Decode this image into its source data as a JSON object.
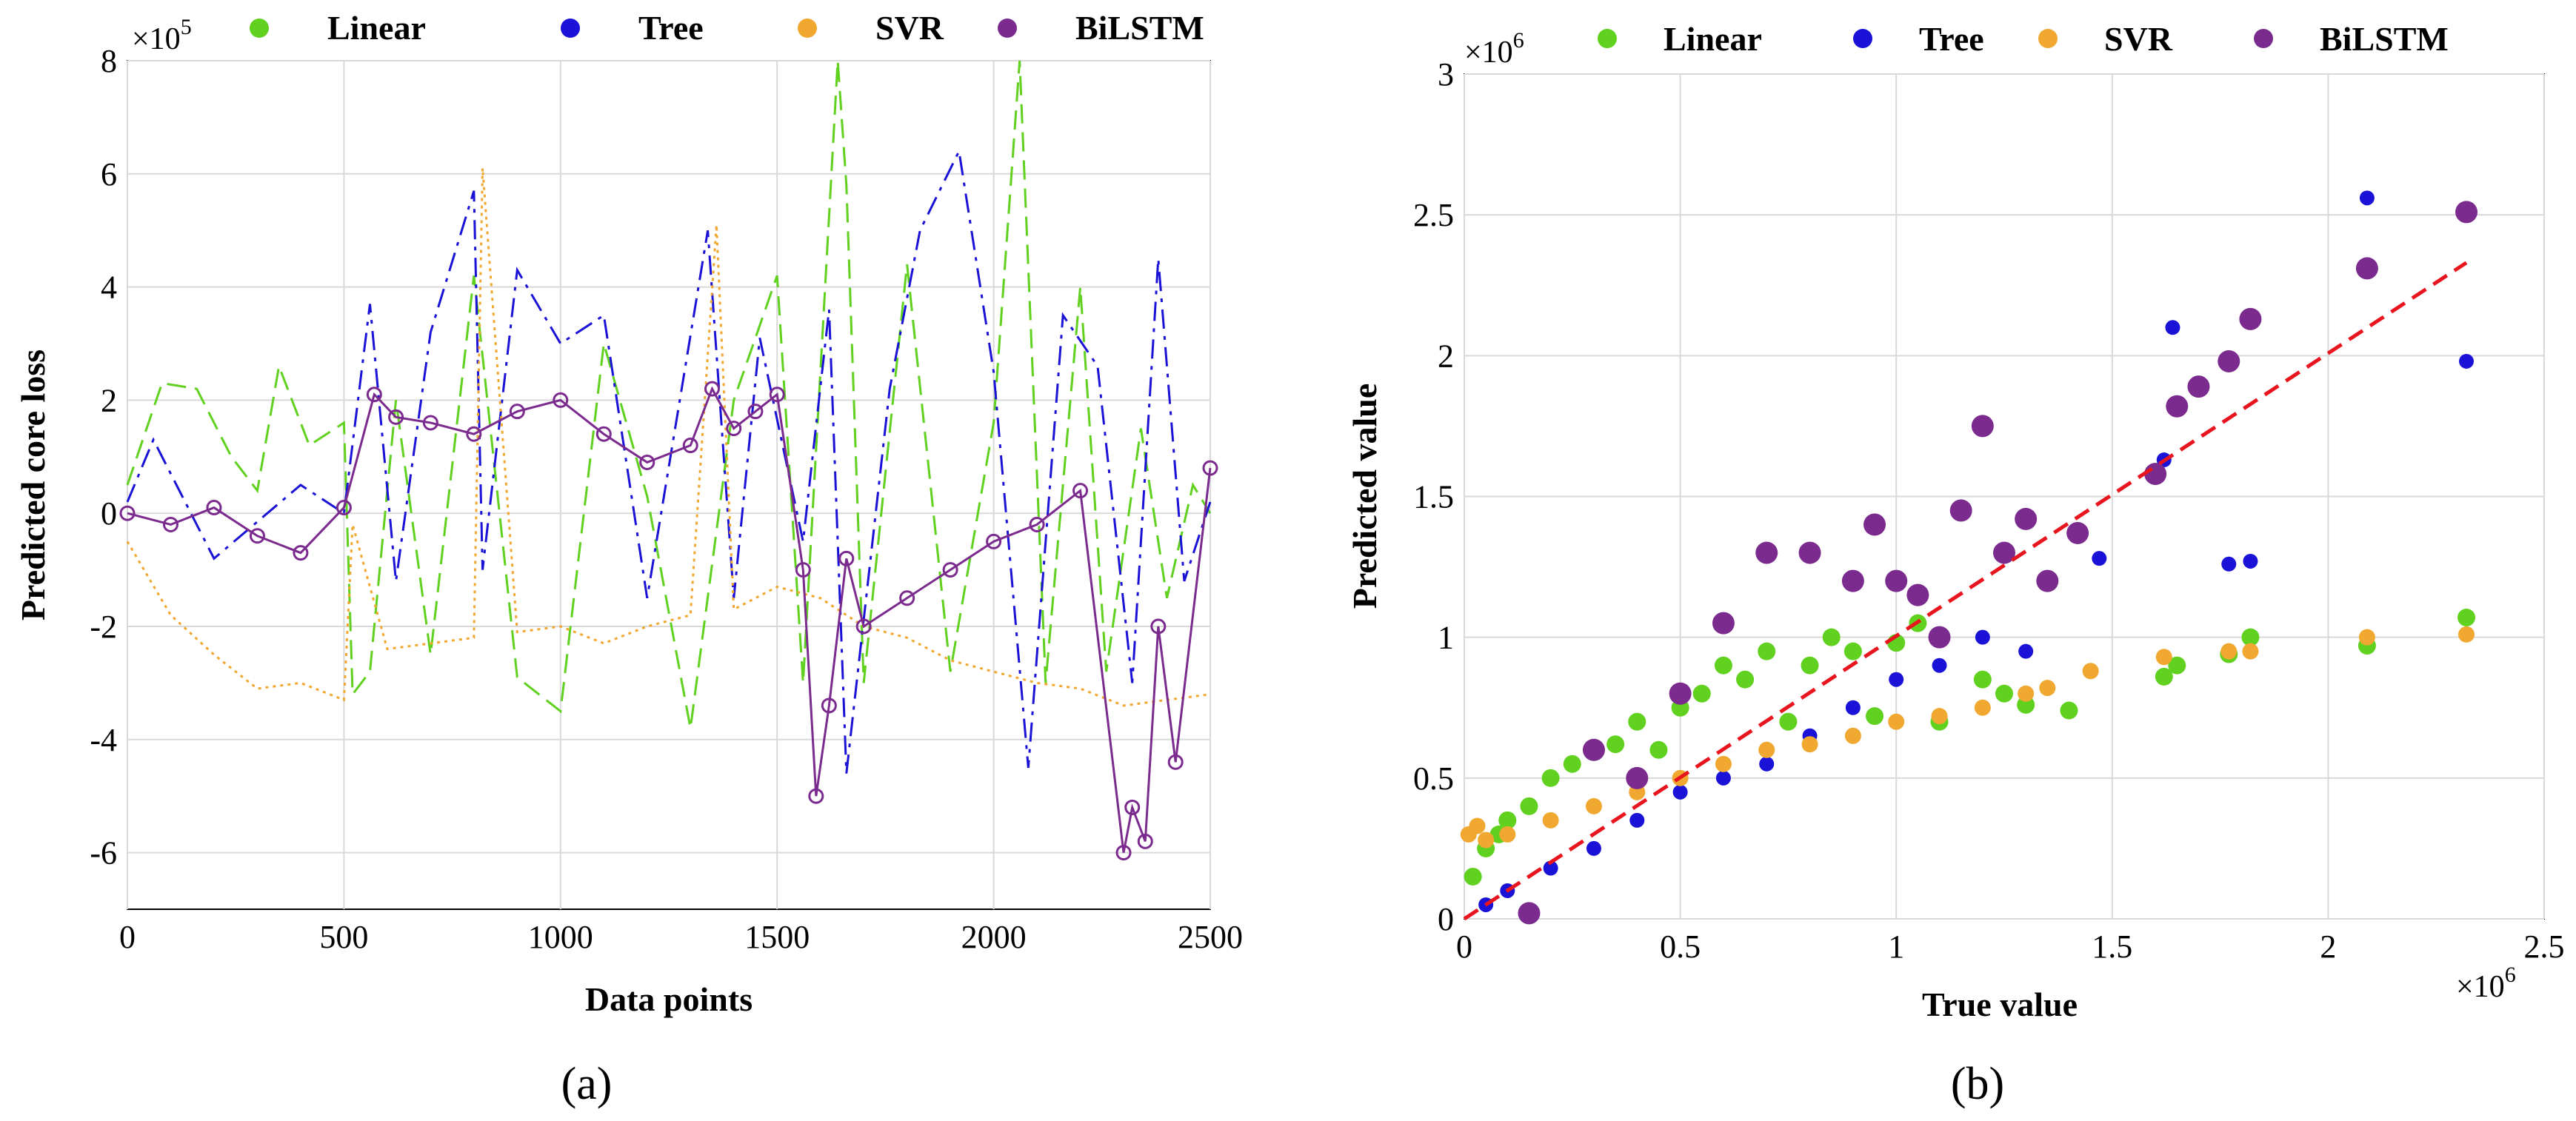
{
  "chart_data": [
    {
      "type": "line",
      "caption": "(a)",
      "xlabel": "Data points",
      "ylabel": "Predicted core loss",
      "y_multiplier": "×10",
      "y_multiplier_exp": "5",
      "xlim": [
        0,
        2500
      ],
      "ylim": [
        -7,
        8
      ],
      "x_ticks": [
        0,
        500,
        1000,
        1500,
        2000,
        2500
      ],
      "y_ticks": [
        -6,
        -4,
        -2,
        0,
        2,
        4,
        6,
        8
      ],
      "grid": true,
      "legend": "top",
      "series": [
        {
          "name": "Linear",
          "color": "#5fd11e",
          "style": "dashed",
          "x": [
            0,
            80,
            160,
            240,
            300,
            350,
            420,
            500,
            520,
            560,
            620,
            700,
            800,
            900,
            1000,
            1100,
            1200,
            1300,
            1400,
            1500,
            1560,
            1640,
            1660,
            1700,
            1800,
            1900,
            2000,
            2060,
            2120,
            2200,
            2260,
            2340,
            2400,
            2460,
            2500
          ],
          "values": [
            0.5,
            2.3,
            2.2,
            1.0,
            0.4,
            2.6,
            1.2,
            1.6,
            -3.2,
            -2.8,
            2.0,
            -2.5,
            4.2,
            -2.9,
            -3.5,
            3.0,
            0.3,
            -3.8,
            2.0,
            4.2,
            -3.0,
            8.0,
            5.8,
            -3.0,
            4.4,
            -2.8,
            1.6,
            8.0,
            -3.0,
            4.0,
            -2.8,
            1.5,
            -1.5,
            0.5,
            0.0
          ]
        },
        {
          "name": "Tree",
          "color": "#1a12d6",
          "style": "dashdot",
          "x": [
            0,
            60,
            200,
            400,
            500,
            560,
            620,
            700,
            800,
            820,
            900,
            1000,
            1100,
            1200,
            1340,
            1400,
            1460,
            1560,
            1620,
            1660,
            1760,
            1830,
            1920,
            2000,
            2080,
            2160,
            2240,
            2320,
            2380,
            2440,
            2500
          ],
          "values": [
            0.2,
            1.3,
            -0.8,
            0.5,
            0.0,
            3.7,
            -1.2,
            3.2,
            5.7,
            -1.0,
            4.3,
            3.0,
            3.5,
            -1.5,
            5.0,
            -1.5,
            3.1,
            -0.5,
            3.6,
            -4.6,
            2.2,
            5.0,
            6.4,
            2.5,
            -4.5,
            3.5,
            2.6,
            -3.0,
            4.5,
            -1.2,
            0.2
          ]
        },
        {
          "name": "SVR",
          "color": "#f0a830",
          "style": "dotted",
          "x": [
            0,
            100,
            200,
            300,
            400,
            500,
            520,
            600,
            700,
            800,
            820,
            900,
            1000,
            1100,
            1200,
            1300,
            1360,
            1400,
            1500,
            1600,
            1700,
            1800,
            1900,
            2000,
            2100,
            2200,
            2300,
            2400,
            2500
          ],
          "values": [
            -0.5,
            -1.8,
            -2.5,
            -3.1,
            -3.0,
            -3.3,
            -0.2,
            -2.4,
            -2.3,
            -2.2,
            6.1,
            -2.1,
            -2.0,
            -2.3,
            -2.0,
            -1.8,
            5.1,
            -1.7,
            -1.3,
            -1.5,
            -2.0,
            -2.2,
            -2.6,
            -2.8,
            -3.0,
            -3.1,
            -3.4,
            -3.3,
            -3.2
          ]
        },
        {
          "name": "BiLSTM",
          "color": "#7b2b8e",
          "style": "solid-circle",
          "x": [
            0,
            100,
            200,
            300,
            400,
            500,
            570,
            620,
            700,
            800,
            900,
            1000,
            1100,
            1200,
            1300,
            1350,
            1400,
            1450,
            1500,
            1560,
            1590,
            1620,
            1660,
            1700,
            1800,
            1900,
            2000,
            2100,
            2200,
            2300,
            2320,
            2350,
            2380,
            2420,
            2500
          ],
          "values": [
            0.0,
            -0.2,
            0.1,
            -0.4,
            -0.7,
            0.1,
            2.1,
            1.7,
            1.6,
            1.4,
            1.8,
            2.0,
            1.4,
            0.9,
            1.2,
            2.2,
            1.5,
            1.8,
            2.1,
            -1.0,
            -5.0,
            -3.4,
            -0.8,
            -2.0,
            -1.5,
            -1.0,
            -0.5,
            -0.2,
            0.4,
            -6.0,
            -5.2,
            -5.8,
            -2.0,
            -4.4,
            0.8
          ]
        }
      ]
    },
    {
      "type": "scatter",
      "caption": "(b)",
      "xlabel": "True value",
      "ylabel": "Predicted value",
      "x_multiplier": "×10",
      "x_multiplier_exp": "6",
      "y_multiplier": "×10",
      "y_multiplier_exp": "6",
      "xlim": [
        0,
        2.5
      ],
      "ylim": [
        0,
        3
      ],
      "x_ticks": [
        0,
        0.5,
        1,
        1.5,
        2,
        2.5
      ],
      "y_ticks": [
        0,
        0.5,
        1,
        1.5,
        2,
        2.5,
        3
      ],
      "x_tick_labels": [
        "0",
        "0.5",
        "1",
        "1.5",
        "2",
        "2.5"
      ],
      "y_tick_labels": [
        "0",
        "0.5",
        "1",
        "1.5",
        "2",
        "2.5",
        "3"
      ],
      "grid": true,
      "legend": "top",
      "reference_line": {
        "from": [
          0,
          0
        ],
        "to": [
          2.32,
          2.33
        ],
        "color": "#e8141e",
        "style": "dashed"
      },
      "series": [
        {
          "name": "Linear",
          "color": "#5fd11e",
          "x": [
            0.02,
            0.05,
            0.08,
            0.1,
            0.15,
            0.2,
            0.25,
            0.3,
            0.35,
            0.4,
            0.45,
            0.5,
            0.55,
            0.6,
            0.65,
            0.7,
            0.75,
            0.8,
            0.85,
            0.9,
            0.95,
            1.0,
            1.05,
            1.1,
            1.2,
            1.25,
            1.3,
            1.4,
            1.62,
            1.65,
            1.77,
            1.82,
            2.09,
            2.32
          ],
          "y": [
            0.15,
            0.25,
            0.3,
            0.35,
            0.4,
            0.5,
            0.55,
            0.6,
            0.62,
            0.7,
            0.6,
            0.75,
            0.8,
            0.9,
            0.85,
            0.95,
            0.7,
            0.9,
            1.0,
            0.95,
            0.72,
            0.98,
            1.05,
            0.7,
            0.85,
            0.8,
            0.76,
            0.74,
            0.86,
            0.9,
            0.94,
            1.0,
            0.97,
            1.07
          ]
        },
        {
          "name": "Tree",
          "color": "#1a12d6",
          "x": [
            0.05,
            0.1,
            0.2,
            0.3,
            0.4,
            0.5,
            0.6,
            0.7,
            0.8,
            0.9,
            1.0,
            1.1,
            1.2,
            1.3,
            1.47,
            1.62,
            1.64,
            1.77,
            1.82,
            2.09,
            2.32
          ],
          "y": [
            0.05,
            0.1,
            0.18,
            0.25,
            0.35,
            0.45,
            0.5,
            0.55,
            0.65,
            0.75,
            0.85,
            0.9,
            1.0,
            0.95,
            1.28,
            1.63,
            2.1,
            1.26,
            1.27,
            2.56,
            1.98
          ]
        },
        {
          "name": "SVR",
          "color": "#f0a830",
          "x": [
            0.01,
            0.03,
            0.05,
            0.1,
            0.2,
            0.3,
            0.4,
            0.5,
            0.6,
            0.7,
            0.8,
            0.9,
            1.0,
            1.1,
            1.2,
            1.3,
            1.35,
            1.45,
            1.62,
            1.77,
            1.82,
            2.09,
            2.32
          ],
          "y": [
            0.3,
            0.33,
            0.28,
            0.3,
            0.35,
            0.4,
            0.45,
            0.5,
            0.55,
            0.6,
            0.62,
            0.65,
            0.7,
            0.72,
            0.75,
            0.8,
            0.82,
            0.88,
            0.93,
            0.95,
            0.95,
            1.0,
            1.01
          ]
        },
        {
          "name": "BiLSTM",
          "color": "#7b2b8e",
          "x": [
            0.15,
            0.3,
            0.4,
            0.5,
            0.6,
            0.7,
            0.8,
            0.9,
            0.95,
            1.0,
            1.05,
            1.1,
            1.15,
            1.2,
            1.25,
            1.3,
            1.35,
            1.42,
            1.6,
            1.65,
            1.7,
            1.77,
            1.82,
            2.09,
            2.32
          ],
          "y": [
            0.02,
            0.6,
            0.5,
            0.8,
            1.05,
            1.3,
            1.3,
            1.2,
            1.4,
            1.2,
            1.15,
            1.0,
            1.45,
            1.75,
            1.3,
            1.42,
            1.2,
            1.37,
            1.58,
            1.82,
            1.89,
            1.98,
            2.13,
            2.31,
            2.51
          ]
        }
      ]
    }
  ]
}
